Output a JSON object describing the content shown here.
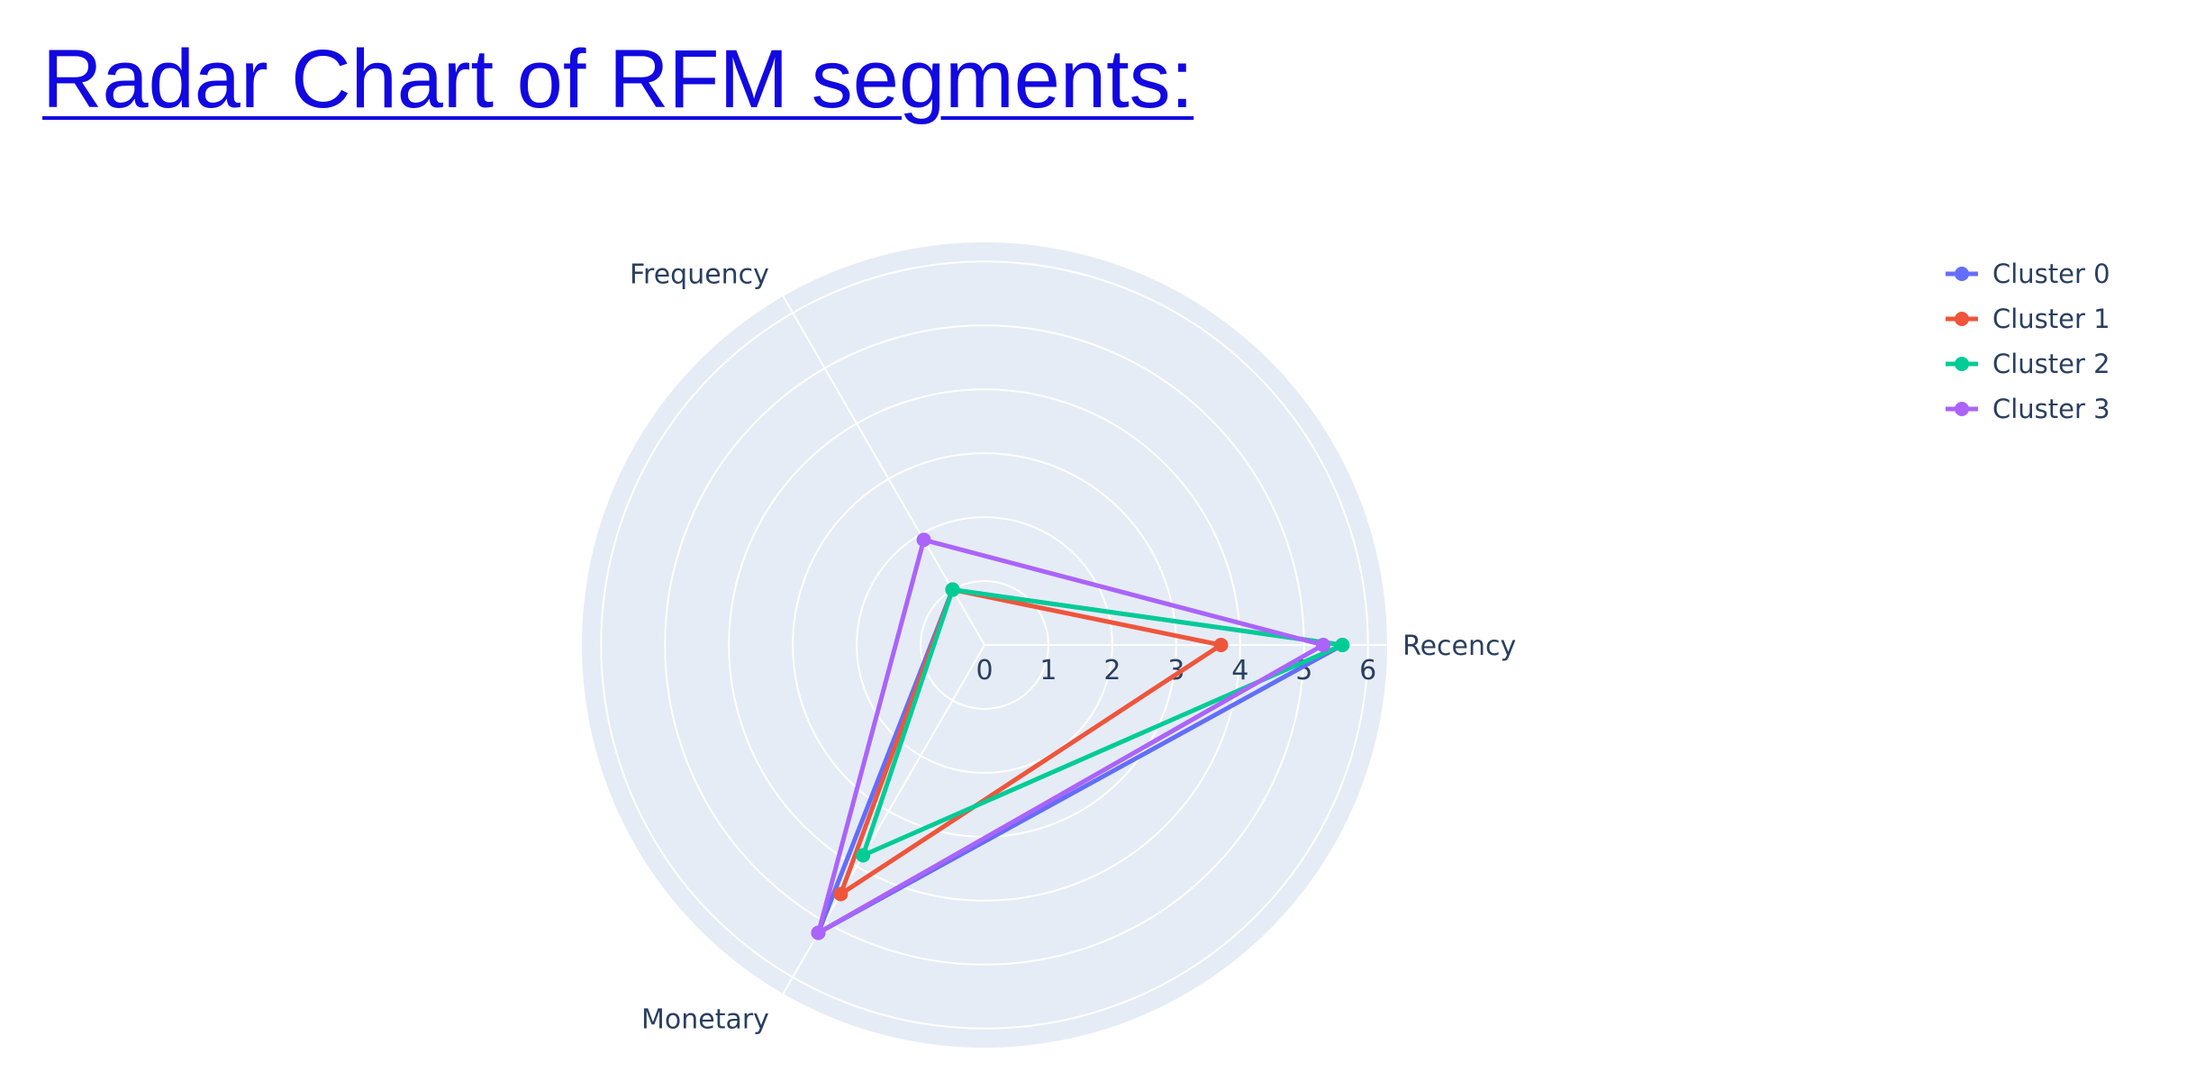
{
  "page": {
    "heading": "Radar Chart of RFM segments:"
  },
  "chart_data": {
    "type": "radar",
    "title": "",
    "axes": [
      "Recency",
      "Frequency",
      "Monetary"
    ],
    "radial_range": [
      0,
      6.3
    ],
    "radial_ticks": [
      "0",
      "1",
      "2",
      "3",
      "4",
      "5",
      "6"
    ],
    "grid": true,
    "legend_position": "top-right",
    "colors": {
      "plot_background": "#e5ecf6",
      "grid": "#ffffff",
      "text": "#2a3f5f"
    },
    "series": [
      {
        "name": "Cluster 0",
        "color": "#636efa",
        "values": [
          5.6,
          1.0,
          5.2
        ]
      },
      {
        "name": "Cluster 1",
        "color": "#ef553b",
        "values": [
          3.7,
          1.0,
          4.5
        ]
      },
      {
        "name": "Cluster 2",
        "color": "#00cc96",
        "values": [
          5.6,
          1.0,
          3.8
        ]
      },
      {
        "name": "Cluster 3",
        "color": "#ab63fa",
        "values": [
          5.3,
          1.9,
          5.2
        ]
      }
    ]
  }
}
